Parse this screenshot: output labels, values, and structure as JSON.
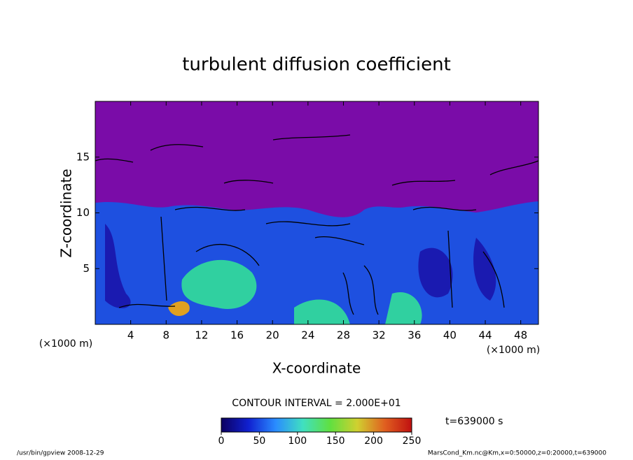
{
  "chart_data": {
    "type": "contour",
    "title": "turbulent diffusion coefficient",
    "x_label": "X-coordinate",
    "y_label": "Z-coordinate",
    "x_unit": "(×1000 m)",
    "y_unit": "(×1000 m)",
    "xlim": [
      0,
      50
    ],
    "xticks": [
      4,
      8,
      12,
      16,
      20,
      24,
      28,
      32,
      36,
      40,
      44,
      48
    ],
    "ylim": [
      0,
      20
    ],
    "yticks": [
      5,
      10,
      15
    ],
    "contour_interval": "CONTOUR INTERVAL = 2.000E+01",
    "time_label": "t=639000 s",
    "colorbar": {
      "lim": [
        0,
        250
      ],
      "ticks": [
        0,
        50,
        100,
        150,
        200,
        250
      ],
      "colors": [
        "#0c0060",
        "#1020d0",
        "#2a8cff",
        "#40e0c0",
        "#60e040",
        "#d0d030",
        "#e06020",
        "#c01010"
      ]
    },
    "footer_left": "/usr/bin/gpview  2008-12-29",
    "footer_right": "MarsCond_Km.nc@Km,x=0:50000,z=0:20000,t=639000"
  }
}
